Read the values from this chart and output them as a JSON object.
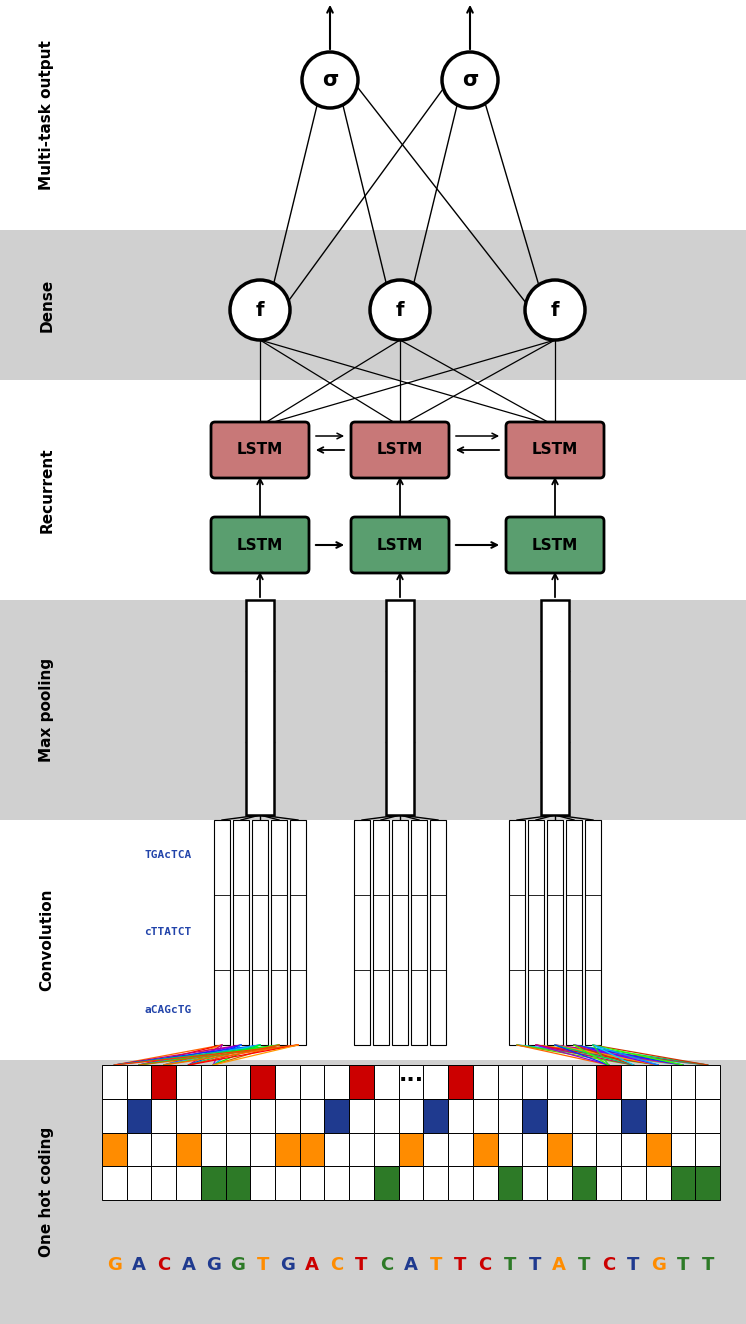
{
  "bg_white": "#ffffff",
  "bg_gray": "#d0d0d0",
  "lstm_pink_color": "#c87878",
  "lstm_green_color": "#5a9e6f",
  "dna_sequence": "GACAGGTGACTCATTCTTATCTGTT",
  "dna_colors": [
    "#ff8c00",
    "#1f3a8f",
    "#cc0000",
    "#1f3a8f",
    "#1f3a8f",
    "#2d7a27",
    "#ff8c00",
    "#1f3a8f",
    "#cc0000",
    "#ff8c00",
    "#cc0000",
    "#2d7a27",
    "#1f3a8f",
    "#ff8c00",
    "#cc0000",
    "#cc0000",
    "#2d7a27",
    "#1f3a8f",
    "#ff8c00",
    "#2d7a27",
    "#cc0000",
    "#1f3a8f",
    "#ff8c00",
    "#2d7a27",
    "#2d7a27"
  ],
  "one_hot_row_colors": [
    "#cc0000",
    "#1f3a8f",
    "#ff8c00",
    "#2d7a27"
  ],
  "one_hot_patterns": [
    [
      0,
      0,
      1,
      0,
      0,
      0,
      1,
      0,
      0,
      0,
      1,
      0,
      0,
      0,
      1,
      0,
      0,
      0,
      0,
      0,
      1,
      0,
      0,
      0,
      0
    ],
    [
      0,
      1,
      0,
      0,
      0,
      0,
      0,
      0,
      0,
      1,
      0,
      0,
      0,
      1,
      0,
      0,
      0,
      1,
      0,
      0,
      0,
      1,
      0,
      0,
      0
    ],
    [
      1,
      0,
      0,
      1,
      0,
      0,
      0,
      1,
      1,
      0,
      0,
      0,
      1,
      0,
      0,
      1,
      0,
      0,
      1,
      0,
      0,
      0,
      1,
      0,
      0
    ],
    [
      0,
      0,
      0,
      0,
      1,
      1,
      0,
      0,
      0,
      0,
      0,
      1,
      0,
      0,
      0,
      0,
      1,
      0,
      0,
      1,
      0,
      0,
      0,
      1,
      1
    ]
  ],
  "conv_fan_colors_left": [
    "#ff6600",
    "#ff0000",
    "#ff9900",
    "#cc0066",
    "#9900cc",
    "#6600ff",
    "#0033ff",
    "#0099ff",
    "#00ccff",
    "#00cc66",
    "#00ff00",
    "#66cc00",
    "#ff3300",
    "#cc6600"
  ],
  "conv_fan_colors_right": [
    "#0099ff",
    "#00ccff",
    "#33cc33",
    "#66cc00",
    "#ff6600",
    "#ff0000",
    "#cc0066",
    "#9900cc",
    "#ff9900",
    "#00cc66",
    "#0033ff",
    "#6600ff",
    "#cc3300",
    "#33ff00"
  ]
}
